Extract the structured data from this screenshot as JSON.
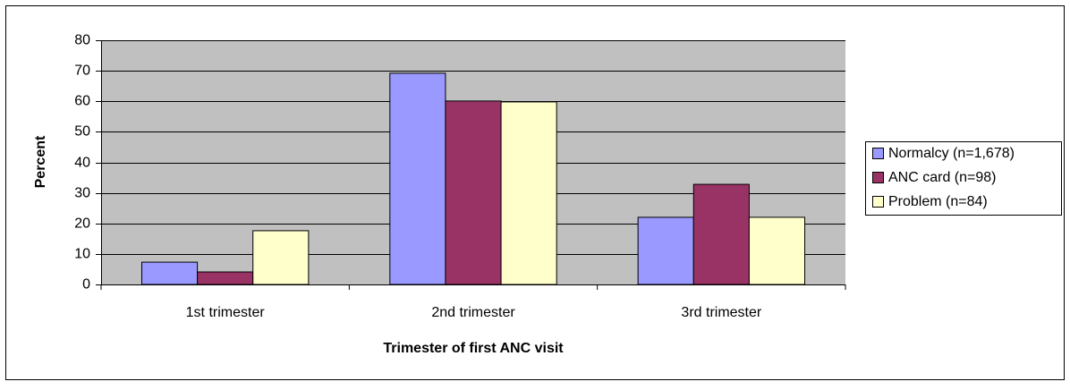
{
  "chart_data": {
    "type": "bar",
    "categories": [
      "1st trimester",
      "2nd trimester",
      "3rd trimester"
    ],
    "series": [
      {
        "name": "Normalcy (n=1,678)",
        "color": "#9999ff",
        "values": [
          7.3,
          69.2,
          22
        ]
      },
      {
        "name": "ANC card (n=98)",
        "color": "#993366",
        "values": [
          4.1,
          60.1,
          32.8
        ]
      },
      {
        "name": "Problem (n=84)",
        "color": "#ffffcc",
        "values": [
          17.6,
          59.8,
          22
        ]
      }
    ],
    "xlabel": "Trimester of first ANC visit",
    "ylabel": "Percent",
    "ylim": [
      0,
      80
    ],
    "yticks": [
      0,
      10,
      20,
      30,
      40,
      50,
      60,
      70,
      80
    ],
    "grid": true,
    "legend": "right"
  }
}
